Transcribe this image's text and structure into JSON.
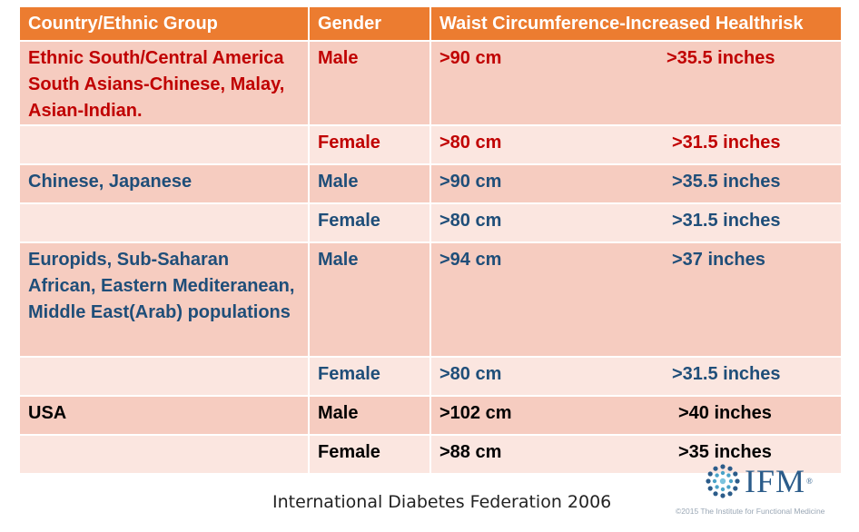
{
  "table": {
    "headers": [
      "Country/Ethnic Group",
      "Gender",
      "Waist Circumference-Increased Healthrisk"
    ],
    "rows": [
      {
        "group": "Ethnic South/Central America South Asians-Chinese, Malay, Asian-Indian.",
        "gender": "Male",
        "cm": ">90 cm",
        "inches": ">35.5 inches"
      },
      {
        "group": "",
        "gender": "Female",
        "cm": ">80 cm",
        "inches": ">31.5 inches"
      },
      {
        "group": "Chinese, Japanese",
        "gender": "Male",
        "cm": ">90 cm",
        "inches": ">35.5 inches"
      },
      {
        "group": "",
        "gender": "Female",
        "cm": ">80 cm",
        "inches": ">31.5 inches"
      },
      {
        "group": "Europids, Sub-Saharan African, Eastern Mediteranean, Middle East(Arab) populations",
        "gender": "Male",
        "cm": ">94 cm",
        "inches": ">37 inches"
      },
      {
        "group": "",
        "gender": "Female",
        "cm": ">80 cm",
        "inches": ">31.5 inches"
      },
      {
        "group": "USA",
        "gender": "Male",
        "cm": ">102 cm",
        "inches": ">40 inches"
      },
      {
        "group": "",
        "gender": "Female",
        "cm": ">88 cm",
        "inches": ">35 inches"
      }
    ]
  },
  "footer": {
    "caption": "International Diabetes Federation 2006",
    "logo_text": "IFM",
    "logo_mark": "®",
    "copyright": "©2015 The Institute for Functional Medicine"
  },
  "colors": {
    "header_bg": "#ec7c30",
    "row_dark": "#f6ccc0",
    "row_light": "#fbe6e0",
    "text_red": "#c00000",
    "text_blue": "#1f4e79",
    "logo_blue": "#2b5c8a"
  },
  "icons": {
    "logo": "ifm-logo-mark-icon"
  }
}
